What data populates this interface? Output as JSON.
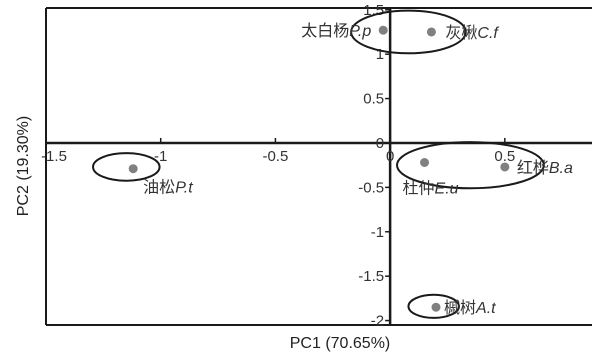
{
  "chart_data": {
    "type": "scatter",
    "title": "",
    "xlabel": "PC1 (70.65%)",
    "ylabel": "PC2 (19.30%)",
    "xlim": [
      -1.5,
      0.88
    ],
    "ylim": [
      -2.05,
      1.52
    ],
    "x_ticks": [
      -1.5,
      -1,
      -0.5,
      0,
      0.5
    ],
    "x_tick_labels": [
      "-1.5",
      "-1",
      "-0.5",
      "0",
      "0.5"
    ],
    "y_ticks": [
      1.5,
      1,
      0.5,
      0,
      -0.5,
      -1,
      -1.5,
      -2
    ],
    "y_tick_labels": [
      "1.5",
      "1",
      "0.5",
      "0",
      "-0.5",
      "-1",
      "-1.5",
      "-2"
    ],
    "grid": false,
    "point_color": "#808080",
    "ellipse_color": "#1a1a1a",
    "points": [
      {
        "x": -0.03,
        "y": 1.27,
        "label_cn": "太白杨",
        "label_sci": "P.p"
      },
      {
        "x": 0.18,
        "y": 1.25,
        "label_cn": "灰楸",
        "label_sci": "C.f"
      },
      {
        "x": -1.12,
        "y": -0.29,
        "label_cn": "油松",
        "label_sci": "P.t"
      },
      {
        "x": 0.15,
        "y": -0.22,
        "label_cn": "杜仲",
        "label_sci": "E.u"
      },
      {
        "x": 0.5,
        "y": -0.27,
        "label_cn": "红桦",
        "label_sci": "B.a"
      },
      {
        "x": 0.2,
        "y": -1.85,
        "label_cn": "槭树",
        "label_sci": "A.t"
      }
    ],
    "ellipses": [
      {
        "cx": 0.08,
        "cy": 1.25,
        "rx": 0.25,
        "ry": 0.24
      },
      {
        "cx": -1.15,
        "cy": -0.27,
        "rx": 0.145,
        "ry": 0.155
      },
      {
        "cx": 0.35,
        "cy": -0.25,
        "rx": 0.32,
        "ry": 0.26
      },
      {
        "cx": 0.19,
        "cy": -1.84,
        "rx": 0.11,
        "ry": 0.13
      }
    ]
  }
}
